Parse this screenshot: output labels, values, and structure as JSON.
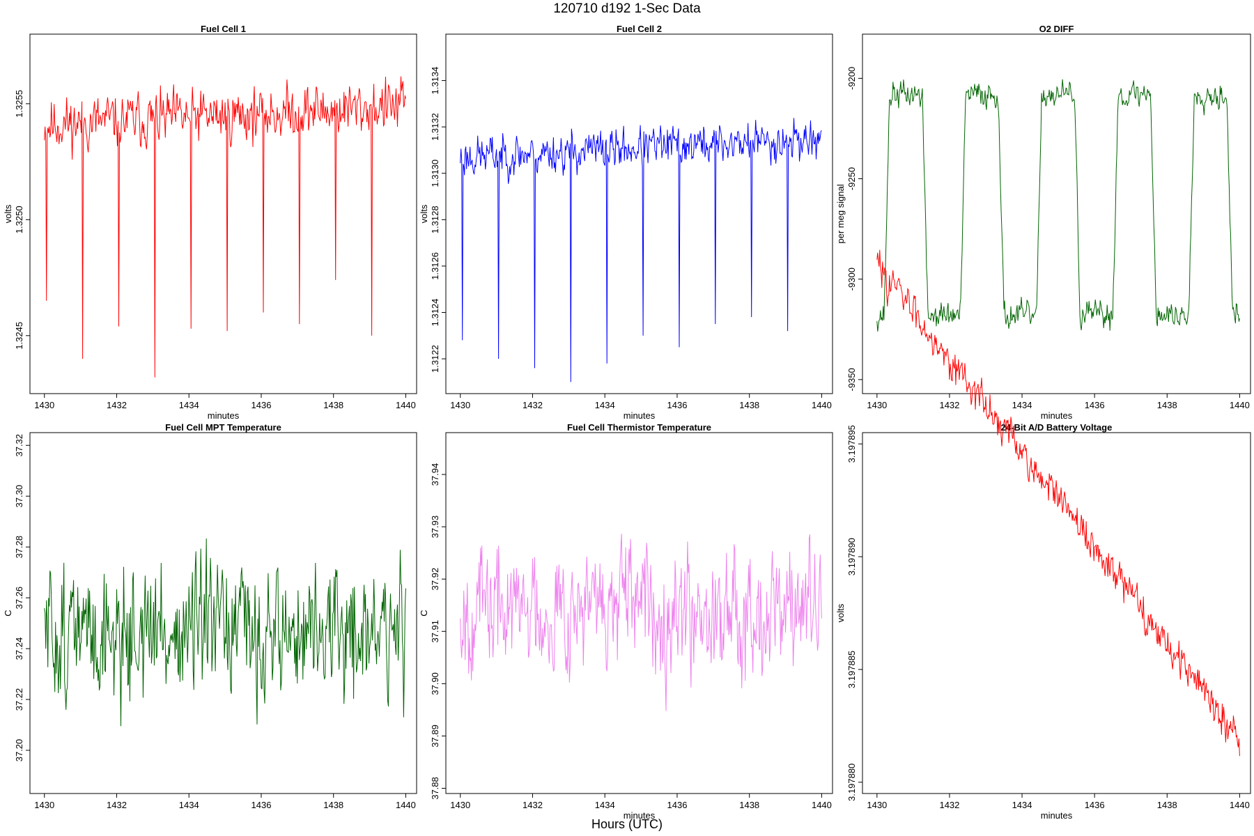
{
  "header": {
    "title": "120710   d192   1-Sec Data"
  },
  "footer": {
    "xlabel": "Hours (UTC)"
  },
  "chart_data": [
    {
      "type": "line",
      "title": "Fuel Cell 1",
      "xlabel": "minutes",
      "ylabel": "volts",
      "color": "#ff0000",
      "xlim": [
        1429.6,
        1440.3
      ],
      "ylim": [
        1.32425,
        1.3258
      ],
      "xticks": [
        "1430",
        "1432",
        "1434",
        "1436",
        "1438",
        "1440"
      ],
      "yticks": [
        "1.3245",
        "1.3250",
        "1.3255"
      ],
      "series": {
        "base": 1.32545,
        "amp": 0.00013,
        "trend": 4e-05,
        "seed": 11,
        "osc": null,
        "spikes": [
          [
            1430.05,
            1.32465
          ],
          [
            1431.05,
            1.3244
          ],
          [
            1432.05,
            1.32454
          ],
          [
            1433.05,
            1.32432
          ],
          [
            1434.05,
            1.32453
          ],
          [
            1435.05,
            1.32452
          ],
          [
            1436.05,
            1.3246
          ],
          [
            1437.05,
            1.32455
          ],
          [
            1438.05,
            1.32474
          ],
          [
            1439.05,
            1.3245
          ]
        ]
      }
    },
    {
      "type": "line",
      "title": "Fuel Cell 2",
      "xlabel": "minutes",
      "ylabel": "volts",
      "color": "#0000ff",
      "xlim": [
        1429.6,
        1440.3
      ],
      "ylim": [
        1.31205,
        1.3136
      ],
      "xticks": [
        "1430",
        "1432",
        "1434",
        "1436",
        "1438",
        "1440"
      ],
      "yticks": [
        "1.3122",
        "1.3124",
        "1.3126",
        "1.3128",
        "1.3130",
        "1.3132",
        "1.3134"
      ],
      "series": {
        "base": 1.31311,
        "amp": 0.0001,
        "trend": 4e-05,
        "seed": 23,
        "osc": null,
        "spikes": [
          [
            1430.05,
            1.31228
          ],
          [
            1431.05,
            1.3122
          ],
          [
            1432.05,
            1.31216
          ],
          [
            1433.05,
            1.3121
          ],
          [
            1434.05,
            1.31218
          ],
          [
            1435.05,
            1.3123
          ],
          [
            1436.05,
            1.31225
          ],
          [
            1437.05,
            1.31235
          ],
          [
            1438.05,
            1.31238
          ],
          [
            1439.05,
            1.31232
          ]
        ]
      }
    },
    {
      "type": "line",
      "title": "O2 DIFF",
      "xlabel": "minutes",
      "ylabel": "per meg signal",
      "color": "#006400",
      "xlim": [
        1429.6,
        1440.3
      ],
      "ylim": [
        -9357,
        -9178
      ],
      "xticks": [
        "1430",
        "1432",
        "1434",
        "1436",
        "1438",
        "1440"
      ],
      "yticks": [
        "-9350",
        "-9300",
        "-9250",
        "-9200"
      ],
      "series": {
        "base": -9265,
        "amp": 9,
        "trend": 0,
        "seed": 37,
        "osc": {
          "high": -9208,
          "low": -9318,
          "first_rise": 1430.2,
          "half_period": 1.05,
          "ramp": 0.15
        },
        "spikes": []
      }
    },
    {
      "type": "line",
      "title": "Fuel Cell MPT Temperature",
      "xlabel": "",
      "ylabel": "C",
      "color": "#006400",
      "xlim": [
        1429.6,
        1440.3
      ],
      "ylim": [
        37.183,
        37.325
      ],
      "xticks": [
        "1430",
        "1432",
        "1434",
        "1436",
        "1438",
        "1440"
      ],
      "yticks": [
        "37.20",
        "37.22",
        "37.24",
        "37.26",
        "37.28",
        "37.30",
        "37.32"
      ],
      "series": {
        "base": 37.246,
        "amp": 0.03,
        "trend": 0,
        "seed": 51,
        "osc": null,
        "spikes": []
      }
    },
    {
      "type": "line",
      "title": "Fuel Cell Thermistor Temperature",
      "xlabel": "minutes",
      "ylabel": "C",
      "color": "#ee82ee",
      "xlim": [
        1429.6,
        1440.3
      ],
      "ylim": [
        37.879,
        37.948
      ],
      "xticks": [
        "1430",
        "1432",
        "1434",
        "1436",
        "1438",
        "1440"
      ],
      "yticks": [
        "37.88",
        "37.89",
        "37.90",
        "37.91",
        "37.92",
        "37.93",
        "37.94"
      ],
      "series": {
        "base": 37.9145,
        "amp": 0.013,
        "trend": 0,
        "seed": 67,
        "osc": null,
        "spikes": []
      }
    },
    {
      "type": "line",
      "title": "24-Bit A/D Battery Voltage",
      "xlabel": "minutes",
      "ylabel": "volts",
      "color": "#ff0000",
      "xlim": [
        1429.6,
        1440.3
      ],
      "ylim": [
        3.1978795,
        3.1978955
      ],
      "xticks": [
        "1430",
        "1432",
        "1434",
        "1436",
        "1438",
        "1440"
      ],
      "yticks": [
        "3.197880",
        "3.197885",
        "3.197890",
        "3.197895"
      ],
      "series": {
        "base": 3.1978925,
        "amp": 9e-07,
        "trend": -1.05e-05,
        "seed": 83,
        "osc": null,
        "spikes": []
      }
    }
  ]
}
